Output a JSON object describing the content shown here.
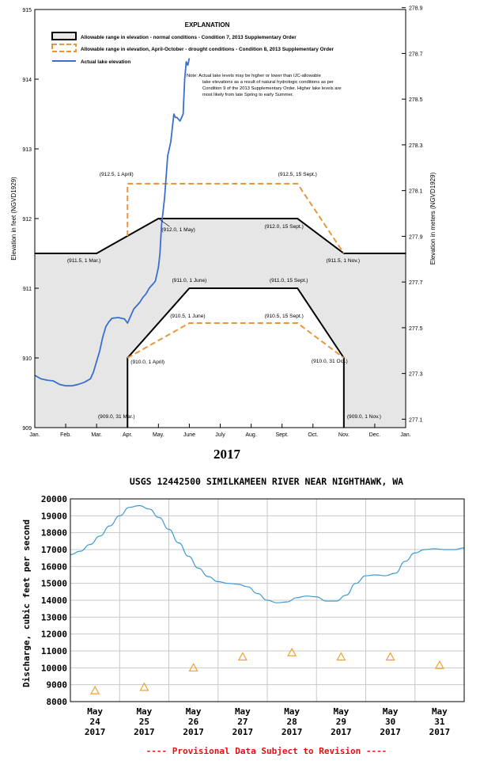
{
  "chart_data": [
    {
      "type": "line",
      "title": "EXPLANATION",
      "year_label": "2017",
      "xlabel": "",
      "ylabel": "Elevation in feet (NGVD1929)",
      "ylabel_right": "Elevation in meters (NGVD1929)",
      "ylim": [
        909,
        915
      ],
      "xlim": [
        0,
        12
      ],
      "x_tick_labels": [
        "Jan.",
        "Feb.",
        "Mar.",
        "Apr.",
        "May.",
        "June",
        "July",
        "Aug.",
        "Sept.",
        "Oct.",
        "Nov.",
        "Dec.",
        "Jan."
      ],
      "y_tick_labels": [
        "909",
        "910",
        "911",
        "912",
        "913",
        "914",
        "915"
      ],
      "y2_ticks": [
        277.1,
        277.3,
        277.5,
        277.7,
        277.9,
        278.1,
        278.3,
        278.5,
        278.7,
        278.9
      ],
      "y2_tick_labels": [
        "277.1",
        "277.3",
        "277.5",
        "277.7",
        "277.9",
        "278.1",
        "278.3",
        "278.5",
        "278.7",
        "278.9"
      ],
      "grid": false,
      "legend": [
        {
          "label": "Allowable range in elevation - normal conditions - Condition 7, 2013 Supplementary Order",
          "color": "#000000"
        },
        {
          "label": "Allowable range in elevation, April-October - drought conditions - Condition 8, 2013 Supplementary Order",
          "color": "#e8963c"
        },
        {
          "label": "Actual lake elevation",
          "color": "#3a6fd0"
        }
      ],
      "note_lines": [
        "Note: Actual lake levels may be higher or lower than IJC-allowable",
        "lake elevations as a result of natural hydrologic conditions as per",
        "Condition 9 of the 2013 Supplementary Order. Higher lake levels are",
        "most likely from late Spring to early Summer."
      ],
      "series": [
        {
          "name": "Actual lake elevation",
          "color": "#3a6fd0",
          "x": [
            0.0,
            0.2,
            0.4,
            0.6,
            0.8,
            1.0,
            1.2,
            1.4,
            1.6,
            1.8,
            1.9,
            2.0,
            2.1,
            2.2,
            2.3,
            2.4,
            2.5,
            2.7,
            2.9,
            3.0,
            3.1,
            3.2,
            3.3,
            3.4,
            3.5,
            3.6,
            3.7,
            3.8,
            3.9,
            4.0,
            4.05,
            4.1,
            4.2,
            4.3,
            4.4,
            4.5,
            4.55,
            4.6,
            4.7,
            4.8,
            4.85,
            4.9,
            4.95,
            5.0
          ],
          "values": [
            909.75,
            909.7,
            909.68,
            909.67,
            909.62,
            909.6,
            909.6,
            909.62,
            909.65,
            909.7,
            909.8,
            909.95,
            910.1,
            910.3,
            910.45,
            910.52,
            910.57,
            910.58,
            910.56,
            910.5,
            910.6,
            910.7,
            910.75,
            910.8,
            910.87,
            910.92,
            911.0,
            911.05,
            911.1,
            911.3,
            911.5,
            911.9,
            912.3,
            912.9,
            913.1,
            913.5,
            913.45,
            913.45,
            913.4,
            913.5,
            914.0,
            914.25,
            914.2,
            914.3
          ]
        }
      ],
      "envelopes": [
        {
          "name": "Allowable range - normal conditions",
          "upper_x": [
            0,
            2,
            4,
            8.5,
            10,
            12
          ],
          "upper_values": [
            911.5,
            911.5,
            912.0,
            912.0,
            911.5,
            911.5
          ],
          "lower_x": [
            3,
            3,
            5,
            8.5,
            10,
            10
          ],
          "lower_values": [
            909.0,
            910.0,
            911.0,
            911.0,
            910.0,
            909.0
          ]
        },
        {
          "name": "Allowable range - drought conditions",
          "upper_x": [
            3,
            3,
            8.5,
            10
          ],
          "upper_values": [
            911.75,
            912.5,
            912.5,
            911.5
          ],
          "lower_x": [
            3,
            5,
            8.5,
            10
          ],
          "lower_values": [
            910.0,
            910.5,
            910.5,
            910.0
          ]
        }
      ],
      "annotations": [
        {
          "text": "(912.5, 1 April)",
          "x": 3,
          "y": 912.5
        },
        {
          "text": "(912.5, 15 Sept.)",
          "x": 8.5,
          "y": 912.5
        },
        {
          "text": "(912.0, 1 May)",
          "x": 4,
          "y": 912.0
        },
        {
          "text": "(912.0, 15 Sept.)",
          "x": 8.5,
          "y": 912.0
        },
        {
          "text": "(911.5, 1 Mar.)",
          "x": 2,
          "y": 911.5
        },
        {
          "text": "(911.5, 1 Nov.)",
          "x": 10,
          "y": 911.5
        },
        {
          "text": "(911.0, 1 June)",
          "x": 5,
          "y": 911.0
        },
        {
          "text": "(911.0, 15 Sept.)",
          "x": 8.5,
          "y": 911.0
        },
        {
          "text": "(910.5, 1 June)",
          "x": 5,
          "y": 910.5
        },
        {
          "text": "(910.5, 15 Sept.)",
          "x": 8.5,
          "y": 910.5
        },
        {
          "text": "(910.0, 1 April)",
          "x": 3,
          "y": 910.0
        },
        {
          "text": "(910.0, 31 Oct.)",
          "x": 10,
          "y": 910.0
        },
        {
          "text": "(909.0, 31 Mar.)",
          "x": 3,
          "y": 909.0
        },
        {
          "text": "(909.0, 1 Nov.)",
          "x": 10,
          "y": 909.0
        }
      ]
    },
    {
      "type": "line",
      "title": "USGS 12442500 SIMILKAMEEN RIVER NEAR NIGHTHAWK, WA",
      "xlabel": "",
      "ylabel": "Discharge, cubic feet per second",
      "ylim": [
        8000,
        20000
      ],
      "xlim": [
        24,
        32
      ],
      "grid": true,
      "y_ticks": [
        8000,
        9000,
        10000,
        11000,
        12000,
        13000,
        14000,
        15000,
        16000,
        17000,
        18000,
        19000,
        20000
      ],
      "categories": [
        [
          "May",
          "24",
          "2017"
        ],
        [
          "May",
          "25",
          "2017"
        ],
        [
          "May",
          "26",
          "2017"
        ],
        [
          "May",
          "27",
          "2017"
        ],
        [
          "May",
          "28",
          "2017"
        ],
        [
          "May",
          "29",
          "2017"
        ],
        [
          "May",
          "30",
          "2017"
        ],
        [
          "May",
          "31",
          "2017"
        ]
      ],
      "category_x": [
        24.5,
        25.5,
        26.5,
        27.5,
        28.5,
        29.5,
        30.5,
        31.5
      ],
      "footnote": "---- Provisional Data Subject to Revision ----",
      "series": [
        {
          "name": "Discharge",
          "color": "#3c9bd4",
          "x": [
            24.0,
            24.2,
            24.4,
            24.6,
            24.8,
            25.0,
            25.2,
            25.4,
            25.6,
            25.8,
            26.0,
            26.2,
            26.4,
            26.6,
            26.8,
            27.0,
            27.2,
            27.4,
            27.6,
            27.8,
            28.0,
            28.2,
            28.4,
            28.6,
            28.8,
            29.0,
            29.2,
            29.4,
            29.6,
            29.8,
            30.0,
            30.2,
            30.4,
            30.6,
            30.8,
            31.0,
            31.2,
            31.4,
            31.6,
            31.8,
            32.0
          ],
          "values": [
            16700,
            16900,
            17300,
            17800,
            18400,
            19000,
            19500,
            19600,
            19400,
            18900,
            18200,
            17400,
            16600,
            15900,
            15400,
            15100,
            15000,
            14950,
            14800,
            14400,
            14000,
            13850,
            13900,
            14150,
            14250,
            14200,
            13950,
            13950,
            14300,
            15000,
            15450,
            15500,
            15450,
            15600,
            16300,
            16800,
            17000,
            17050,
            17000,
            17000,
            17100
          ]
        },
        {
          "name": "Median daily statistic",
          "color": "#f0a030",
          "marker": "triangle",
          "x": [
            24.5,
            25.5,
            26.5,
            27.5,
            28.5,
            29.5,
            30.5,
            31.5
          ],
          "values": [
            8650,
            8850,
            10000,
            10650,
            10900,
            10650,
            10650,
            10150
          ]
        }
      ]
    }
  ]
}
